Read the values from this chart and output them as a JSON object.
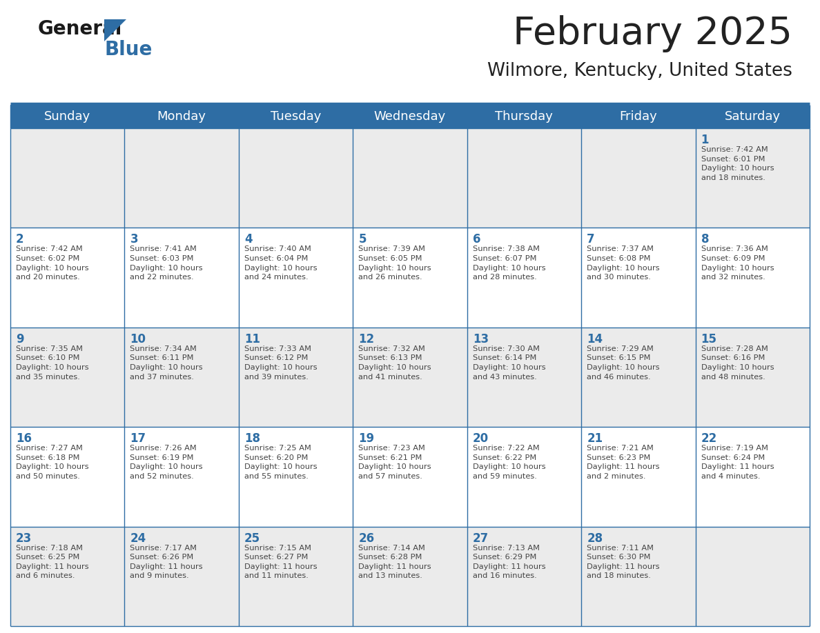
{
  "title": "February 2025",
  "subtitle": "Wilmore, Kentucky, United States",
  "header_bg": "#2E6DA4",
  "header_text_color": "#FFFFFF",
  "day_names": [
    "Sunday",
    "Monday",
    "Tuesday",
    "Wednesday",
    "Thursday",
    "Friday",
    "Saturday"
  ],
  "cell_bg_odd": "#EBEBEB",
  "cell_bg_even": "#FFFFFF",
  "date_text_color": "#2E6DA4",
  "info_text_color": "#444444",
  "border_color": "#2E6DA4",
  "title_color": "#222222",
  "subtitle_color": "#222222",
  "logo_general_color": "#1a1a1a",
  "logo_blue_color": "#2E6DA4",
  "logo_triangle_color": "#2E6DA4",
  "weeks": [
    [
      {
        "day": null,
        "sunrise": null,
        "sunset": null,
        "daylight": null
      },
      {
        "day": null,
        "sunrise": null,
        "sunset": null,
        "daylight": null
      },
      {
        "day": null,
        "sunrise": null,
        "sunset": null,
        "daylight": null
      },
      {
        "day": null,
        "sunrise": null,
        "sunset": null,
        "daylight": null
      },
      {
        "day": null,
        "sunrise": null,
        "sunset": null,
        "daylight": null
      },
      {
        "day": null,
        "sunrise": null,
        "sunset": null,
        "daylight": null
      },
      {
        "day": 1,
        "sunrise": "7:42 AM",
        "sunset": "6:01 PM",
        "daylight": "10 hours\nand 18 minutes."
      }
    ],
    [
      {
        "day": 2,
        "sunrise": "7:42 AM",
        "sunset": "6:02 PM",
        "daylight": "10 hours\nand 20 minutes."
      },
      {
        "day": 3,
        "sunrise": "7:41 AM",
        "sunset": "6:03 PM",
        "daylight": "10 hours\nand 22 minutes."
      },
      {
        "day": 4,
        "sunrise": "7:40 AM",
        "sunset": "6:04 PM",
        "daylight": "10 hours\nand 24 minutes."
      },
      {
        "day": 5,
        "sunrise": "7:39 AM",
        "sunset": "6:05 PM",
        "daylight": "10 hours\nand 26 minutes."
      },
      {
        "day": 6,
        "sunrise": "7:38 AM",
        "sunset": "6:07 PM",
        "daylight": "10 hours\nand 28 minutes."
      },
      {
        "day": 7,
        "sunrise": "7:37 AM",
        "sunset": "6:08 PM",
        "daylight": "10 hours\nand 30 minutes."
      },
      {
        "day": 8,
        "sunrise": "7:36 AM",
        "sunset": "6:09 PM",
        "daylight": "10 hours\nand 32 minutes."
      }
    ],
    [
      {
        "day": 9,
        "sunrise": "7:35 AM",
        "sunset": "6:10 PM",
        "daylight": "10 hours\nand 35 minutes."
      },
      {
        "day": 10,
        "sunrise": "7:34 AM",
        "sunset": "6:11 PM",
        "daylight": "10 hours\nand 37 minutes."
      },
      {
        "day": 11,
        "sunrise": "7:33 AM",
        "sunset": "6:12 PM",
        "daylight": "10 hours\nand 39 minutes."
      },
      {
        "day": 12,
        "sunrise": "7:32 AM",
        "sunset": "6:13 PM",
        "daylight": "10 hours\nand 41 minutes."
      },
      {
        "day": 13,
        "sunrise": "7:30 AM",
        "sunset": "6:14 PM",
        "daylight": "10 hours\nand 43 minutes."
      },
      {
        "day": 14,
        "sunrise": "7:29 AM",
        "sunset": "6:15 PM",
        "daylight": "10 hours\nand 46 minutes."
      },
      {
        "day": 15,
        "sunrise": "7:28 AM",
        "sunset": "6:16 PM",
        "daylight": "10 hours\nand 48 minutes."
      }
    ],
    [
      {
        "day": 16,
        "sunrise": "7:27 AM",
        "sunset": "6:18 PM",
        "daylight": "10 hours\nand 50 minutes."
      },
      {
        "day": 17,
        "sunrise": "7:26 AM",
        "sunset": "6:19 PM",
        "daylight": "10 hours\nand 52 minutes."
      },
      {
        "day": 18,
        "sunrise": "7:25 AM",
        "sunset": "6:20 PM",
        "daylight": "10 hours\nand 55 minutes."
      },
      {
        "day": 19,
        "sunrise": "7:23 AM",
        "sunset": "6:21 PM",
        "daylight": "10 hours\nand 57 minutes."
      },
      {
        "day": 20,
        "sunrise": "7:22 AM",
        "sunset": "6:22 PM",
        "daylight": "10 hours\nand 59 minutes."
      },
      {
        "day": 21,
        "sunrise": "7:21 AM",
        "sunset": "6:23 PM",
        "daylight": "11 hours\nand 2 minutes."
      },
      {
        "day": 22,
        "sunrise": "7:19 AM",
        "sunset": "6:24 PM",
        "daylight": "11 hours\nand 4 minutes."
      }
    ],
    [
      {
        "day": 23,
        "sunrise": "7:18 AM",
        "sunset": "6:25 PM",
        "daylight": "11 hours\nand 6 minutes."
      },
      {
        "day": 24,
        "sunrise": "7:17 AM",
        "sunset": "6:26 PM",
        "daylight": "11 hours\nand 9 minutes."
      },
      {
        "day": 25,
        "sunrise": "7:15 AM",
        "sunset": "6:27 PM",
        "daylight": "11 hours\nand 11 minutes."
      },
      {
        "day": 26,
        "sunrise": "7:14 AM",
        "sunset": "6:28 PM",
        "daylight": "11 hours\nand 13 minutes."
      },
      {
        "day": 27,
        "sunrise": "7:13 AM",
        "sunset": "6:29 PM",
        "daylight": "11 hours\nand 16 minutes."
      },
      {
        "day": 28,
        "sunrise": "7:11 AM",
        "sunset": "6:30 PM",
        "daylight": "11 hours\nand 18 minutes."
      },
      {
        "day": null,
        "sunrise": null,
        "sunset": null,
        "daylight": null
      }
    ]
  ]
}
